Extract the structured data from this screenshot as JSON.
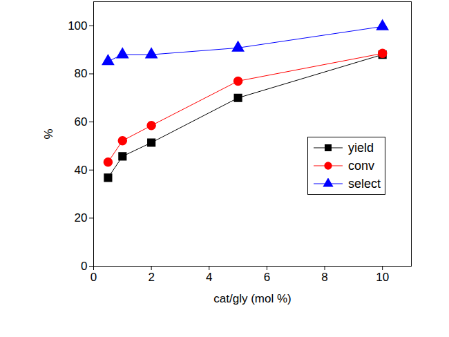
{
  "chart_data": {
    "type": "line",
    "x_label": "cat/gly (mol %)",
    "y_label": "%",
    "x": [
      0.5,
      1,
      2,
      5,
      10
    ],
    "series": [
      {
        "name": "yield",
        "color": "#000000",
        "marker": "square",
        "values": [
          36.8,
          45.7,
          51.4,
          70,
          88
        ]
      },
      {
        "name": "conv",
        "color": "#ff0000",
        "marker": "circle",
        "values": [
          43.3,
          52.2,
          58.5,
          77,
          88.5
        ]
      },
      {
        "name": "select",
        "color": "#0000ff",
        "marker": "triangle",
        "values": [
          85.2,
          88,
          88,
          90.8,
          99.7
        ]
      }
    ],
    "xlim": [
      0,
      11
    ],
    "xticks": [
      0,
      2,
      4,
      6,
      8,
      10
    ],
    "ylim": [
      0,
      110
    ],
    "yticks": [
      0,
      20,
      40,
      60,
      80,
      100
    ],
    "grid": false,
    "legend": "right"
  }
}
